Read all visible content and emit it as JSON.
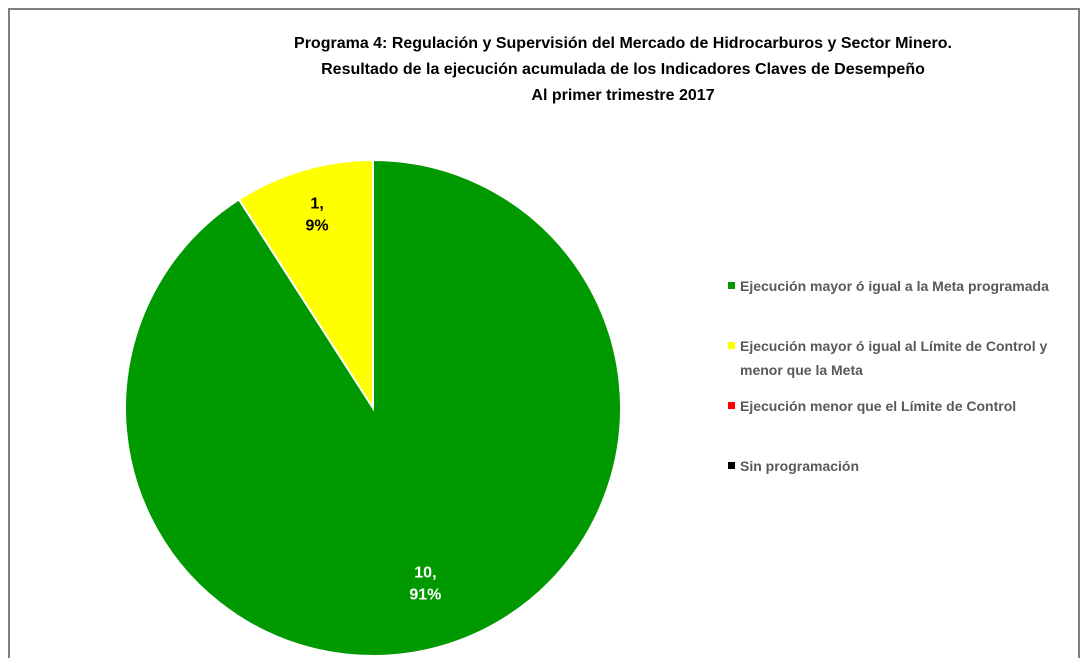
{
  "chart_data": {
    "type": "pie",
    "title": [
      "Programa 4:  Regulación y Supervisión del Mercado de Hidrocarburos y Sector Minero.",
      "Resultado de la ejecución  acumulada de los Indicadores Claves de Desempeño",
      "Al  primer trimestre 2017"
    ],
    "categories": [
      "Ejecución mayor ó igual a la Meta programada",
      "Ejecución mayor ó igual al Límite de Control y menor que la Meta",
      "Ejecución menor que el Límite de Control",
      "Sin programación"
    ],
    "values": [
      10,
      1,
      0,
      0
    ],
    "value_labels": [
      "10, 91%",
      "1, 9%",
      null,
      null
    ],
    "colors": [
      "#009900",
      "#ffff00",
      "#ff0000",
      "#000000"
    ],
    "legend": "right"
  }
}
